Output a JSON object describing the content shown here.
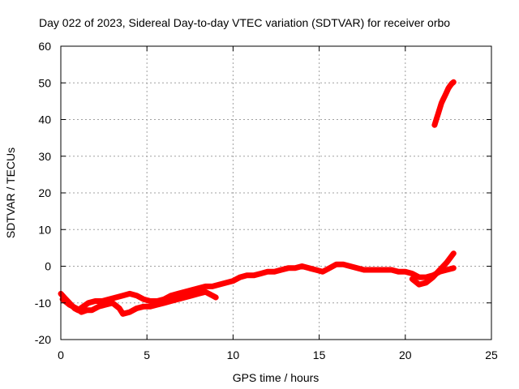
{
  "chart_data": {
    "type": "scatter",
    "title": "Day 022 of 2023, Sidereal Day-to-day VTEC variation (SDTVAR) for receiver orbo",
    "xlabel": "GPS time / hours",
    "ylabel": "SDTVAR / TECUs",
    "xlim": [
      0,
      25
    ],
    "ylim": [
      -20,
      60
    ],
    "x_ticks": [
      0,
      5,
      10,
      15,
      20,
      25
    ],
    "y_ticks": [
      -20,
      -10,
      0,
      10,
      20,
      30,
      40,
      50,
      60
    ],
    "grid": true,
    "marker_color": "#ff0000",
    "series": [
      {
        "values": [
          [
            0.0,
            -7.5
          ],
          [
            0.2,
            -8.5
          ],
          [
            0.4,
            -9.5
          ],
          [
            0.6,
            -10.5
          ],
          [
            0.8,
            -11.5
          ],
          [
            1.0,
            -12.0
          ],
          [
            1.3,
            -11.0
          ],
          [
            1.6,
            -10.0
          ],
          [
            2.0,
            -9.5
          ],
          [
            2.4,
            -9.5
          ],
          [
            2.8,
            -9.0
          ],
          [
            3.2,
            -8.5
          ],
          [
            3.6,
            -8.0
          ],
          [
            4.0,
            -7.5
          ],
          [
            4.4,
            -8.0
          ],
          [
            4.8,
            -9.0
          ],
          [
            5.2,
            -9.5
          ],
          [
            5.6,
            -9.5
          ],
          [
            6.0,
            -9.0
          ],
          [
            6.4,
            -8.0
          ],
          [
            6.8,
            -7.5
          ],
          [
            7.2,
            -7.0
          ],
          [
            7.6,
            -6.5
          ],
          [
            8.0,
            -6.0
          ],
          [
            8.4,
            -5.5
          ],
          [
            8.8,
            -5.5
          ],
          [
            9.2,
            -5.0
          ],
          [
            9.6,
            -4.5
          ],
          [
            10.0,
            -4.0
          ],
          [
            10.4,
            -3.0
          ],
          [
            10.8,
            -2.5
          ],
          [
            11.2,
            -2.5
          ],
          [
            11.6,
            -2.0
          ],
          [
            12.0,
            -1.5
          ],
          [
            12.4,
            -1.5
          ],
          [
            12.8,
            -1.0
          ],
          [
            13.2,
            -0.5
          ],
          [
            13.6,
            -0.5
          ],
          [
            14.0,
            0.0
          ],
          [
            14.4,
            -0.5
          ],
          [
            14.8,
            -1.0
          ],
          [
            15.2,
            -1.5
          ],
          [
            15.6,
            -0.5
          ],
          [
            16.0,
            0.5
          ],
          [
            16.4,
            0.5
          ],
          [
            16.8,
            0.0
          ],
          [
            17.2,
            -0.5
          ],
          [
            17.6,
            -1.0
          ],
          [
            18.0,
            -1.0
          ],
          [
            18.4,
            -1.0
          ],
          [
            18.8,
            -1.0
          ],
          [
            19.2,
            -1.0
          ],
          [
            19.6,
            -1.5
          ],
          [
            20.0,
            -1.5
          ],
          [
            20.4,
            -2.0
          ],
          [
            20.8,
            -3.0
          ],
          [
            21.2,
            -3.0
          ],
          [
            21.6,
            -2.5
          ],
          [
            22.0,
            -1.5
          ],
          [
            22.4,
            -1.0
          ],
          [
            22.8,
            -0.5
          ]
        ]
      },
      {
        "values": [
          [
            0.1,
            -9.0
          ],
          [
            0.5,
            -10.5
          ],
          [
            0.9,
            -11.5
          ],
          [
            1.2,
            -12.5
          ],
          [
            1.5,
            -12.0
          ],
          [
            1.8,
            -12.0
          ],
          [
            2.2,
            -11.0
          ],
          [
            2.6,
            -10.5
          ],
          [
            3.0,
            -10.0
          ],
          [
            3.4,
            -11.5
          ],
          [
            3.6,
            -13.0
          ],
          [
            4.0,
            -12.5
          ],
          [
            4.4,
            -11.5
          ],
          [
            4.8,
            -11.0
          ],
          [
            5.2,
            -11.0
          ],
          [
            5.6,
            -10.5
          ],
          [
            6.0,
            -10.0
          ],
          [
            6.4,
            -9.5
          ],
          [
            6.8,
            -9.0
          ],
          [
            7.2,
            -8.5
          ],
          [
            7.6,
            -8.0
          ],
          [
            8.0,
            -7.5
          ],
          [
            8.4,
            -7.0
          ],
          [
            8.8,
            -8.0
          ],
          [
            9.0,
            -8.5
          ]
        ]
      },
      {
        "values": [
          [
            20.4,
            -3.5
          ],
          [
            20.8,
            -5.0
          ],
          [
            21.2,
            -4.5
          ],
          [
            21.6,
            -3.0
          ],
          [
            22.0,
            -1.0
          ],
          [
            22.4,
            1.0
          ],
          [
            22.8,
            3.5
          ]
        ]
      },
      {
        "values": [
          [
            21.7,
            38.5
          ],
          [
            21.8,
            40.0
          ],
          [
            21.9,
            41.5
          ],
          [
            22.0,
            43.0
          ],
          [
            22.1,
            44.5
          ],
          [
            22.2,
            45.5
          ],
          [
            22.3,
            46.5
          ],
          [
            22.4,
            47.5
          ],
          [
            22.5,
            48.5
          ],
          [
            22.6,
            49.2
          ],
          [
            22.7,
            49.8
          ],
          [
            22.8,
            50.2
          ]
        ]
      }
    ]
  }
}
